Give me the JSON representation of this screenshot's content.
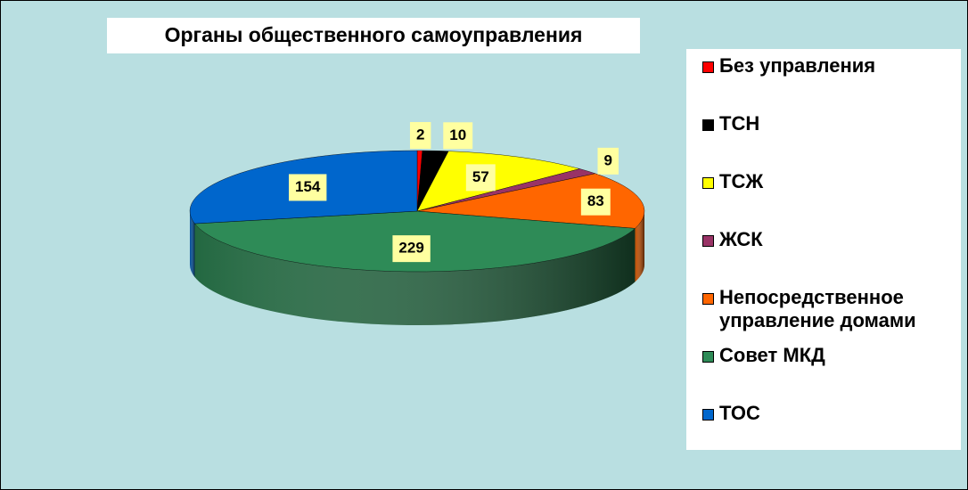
{
  "chart_data": {
    "type": "pie",
    "title": "Органы общественного самоуправления",
    "categories": [
      "Без управления",
      "ТСН",
      "ТСЖ",
      "ЖСК",
      "Непосредственное управление домами",
      "Совет МКД",
      "ТОС"
    ],
    "values": [
      2,
      10,
      57,
      9,
      83,
      229,
      154
    ],
    "colors": [
      "#ff0000",
      "#000000",
      "#ffff00",
      "#993366",
      "#ff6600",
      "#2e8b57",
      "#0066cc"
    ],
    "legend": "right"
  }
}
